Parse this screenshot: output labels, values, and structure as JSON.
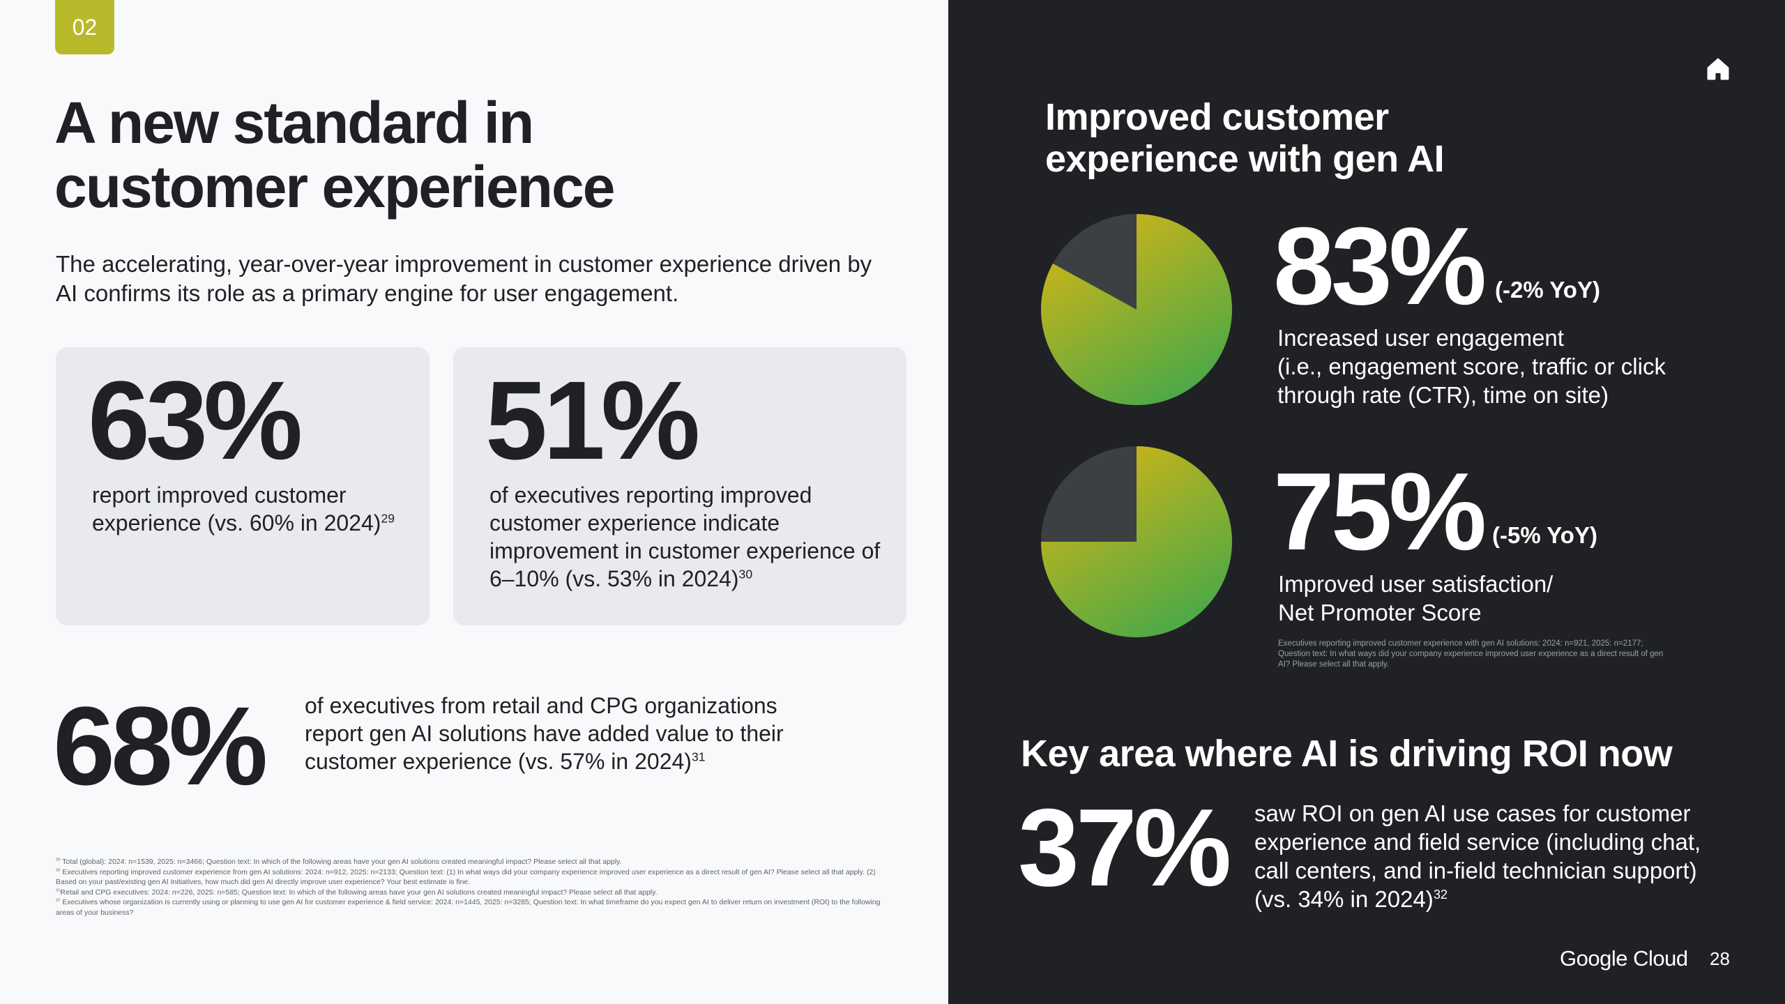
{
  "section_badge": "02",
  "title_lines": [
    "A new standard in",
    "customer experience"
  ],
  "subtitle": "The accelerating, year-over-year improvement in customer experience driven by AI confirms its role as a primary engine for user engagement.",
  "cards": [
    {
      "stat": "63%",
      "text": "report improved customer experience (vs. 60% in 2024)",
      "ref": "29"
    },
    {
      "stat": "51%",
      "text": "of executives reporting improved customer experience indicate improvement in customer experience of 6–10% (vs. 53% in 2024)",
      "ref": "30"
    }
  ],
  "retail_stat": {
    "stat": "68%",
    "text": "of executives from retail and CPG organizations report gen AI solutions have added value to their customer experience (vs. 57% in 2024)",
    "ref": "31"
  },
  "footnotes": [
    {
      "ref": "29",
      "text": "Total (global): 2024: n=1539, 2025: n=3466; Question text: In which of the following areas have your gen AI solutions created meaningful impact? Please select all that apply."
    },
    {
      "ref": "30",
      "text": "Executives reporting improved customer experience from gen AI solutions: 2024: n=912, 2025: n=2133; Question text: (1) In what ways did your company experience improved user experience as a direct result of gen AI? Please select all that apply. (2) Based on your past/existing gen AI Initiatives, how much did gen AI directly improve user experience? Your best estimate is fine."
    },
    {
      "ref": "31",
      "text": "Retail and CPG executives: 2024: n=226, 2025: n=585; Question text: In which of the following areas have your gen AI solutions created meaningful impact? Please select all that apply."
    },
    {
      "ref": "32",
      "text": "Executives whose organization is currently using or planning to use gen AI for customer experience & field service: 2024: n=1445, 2025: n=3285; Question text: In what timeframe do you expect gen AI to deliver return on investment (ROI) to the following areas of your business?"
    }
  ],
  "right": {
    "home_icon": "home-icon",
    "title_lines": [
      "Improved customer",
      "experience with gen AI"
    ],
    "source": "Executives reporting improved customer experience with gen AI solutions: 2024: n=921, 2025: n=2177; Question text: In what ways did your company experience improved user experience as a direct result of gen AI? Please select all that apply.",
    "roi_title": "Key area where AI is driving ROI now",
    "roi_stat": "37%",
    "roi_text": "saw ROI on gen AI use cases for customer experience and field service (including chat, call centers, and in-field technician support) (vs. 34% in 2024)",
    "roi_ref": "32",
    "brand": "Google Cloud",
    "page_number": "28"
  },
  "chart_data": [
    {
      "type": "pie",
      "values": [
        83,
        17
      ],
      "stat": "83%",
      "yoy": "(-2% YoY)",
      "description_lines": [
        "Increased user engagement",
        "(i.e., engagement score, traffic or click",
        "through rate (CTR), time on site)"
      ],
      "colors": {
        "gradient_start": "#d4b516",
        "gradient_end": "#43a84a",
        "remainder": "#3c4043"
      }
    },
    {
      "type": "pie",
      "values": [
        75,
        25
      ],
      "stat": "75%",
      "yoy": "(-5% YoY)",
      "description_lines": [
        "Improved user satisfaction/",
        "Net Promoter Score"
      ],
      "colors": {
        "gradient_start": "#d4b516",
        "gradient_end": "#43a84a",
        "remainder": "#3c4043"
      }
    }
  ],
  "colors": {
    "badge": "#b7b92a",
    "left_bg": "#f8f9fa",
    "right_bg": "#202124",
    "card_bg": "#e8eaed"
  }
}
